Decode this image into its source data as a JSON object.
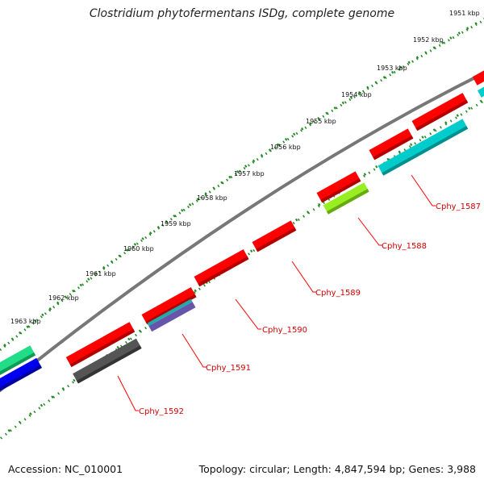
{
  "title": "Clostridium phytofermentans ISDg, complete genome",
  "footer": {
    "accession": "Accession: NC_010001",
    "topology": "Topology: circular; Length: 4,847,594 bp; Genes: 3,988"
  },
  "scale_labels": [
    "1951 kbp",
    "1952 kbp",
    "1953 kbp",
    "1954 kbp",
    "1955 kbp",
    "1956 kbp",
    "1957 kbp",
    "1958 kbp",
    "1959 kbp",
    "1960 kbp",
    "1961 kbp",
    "1962 kbp",
    "1963 kbp"
  ],
  "gene_labels": [
    "Cphy_1587",
    "Cphy_1588",
    "Cphy_1589",
    "Cphy_1590",
    "Cphy_1591",
    "Cphy_1592"
  ],
  "colors": {
    "red": "#ff0000",
    "cyan": "#00cccc",
    "lime": "#99ee22",
    "blue": "#0000ee",
    "green": "#22dd88",
    "gray": "#555555",
    "purple": "#6655aa",
    "backbone": "#777777",
    "dots": "#228822",
    "label": "#d40000"
  }
}
